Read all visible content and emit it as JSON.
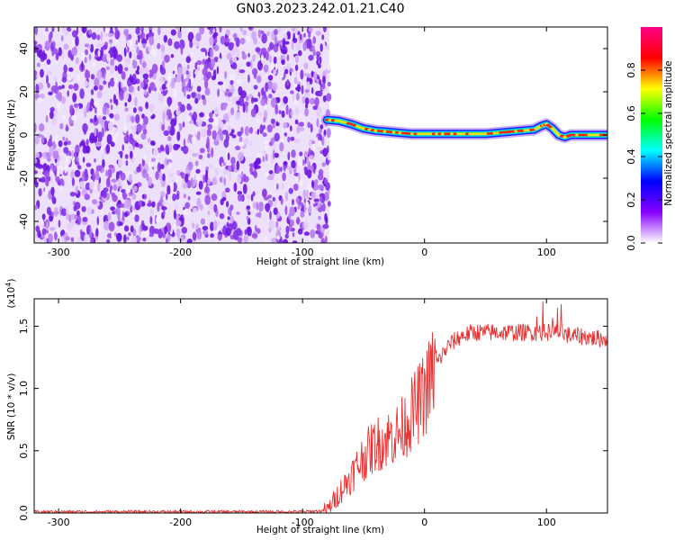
{
  "title": "GN03.2023.242.01.21.C40",
  "chart_data": [
    {
      "type": "heatmap",
      "xlabel": "Height of straight line (km)",
      "ylabel": "Frequency (Hz)",
      "xlim": [
        -320,
        150
      ],
      "ylim": [
        -50,
        50
      ],
      "xticks": [
        -300,
        -200,
        -100,
        0,
        100
      ],
      "yticks": [
        -40,
        -20,
        0,
        20,
        40
      ],
      "noise_region_x": [
        -320,
        -78
      ],
      "ridge": {
        "x": [
          -80,
          -70,
          -60,
          -50,
          -40,
          -30,
          -20,
          -10,
          0,
          10,
          20,
          30,
          40,
          50,
          60,
          70,
          80,
          90,
          95,
          100,
          105,
          110,
          115,
          120,
          130,
          140,
          150
        ],
        "freq": [
          7,
          6.5,
          5,
          3,
          2,
          1.5,
          1,
          0.5,
          0.5,
          0.5,
          0.5,
          0.5,
          0.5,
          0.5,
          1,
          1.5,
          2,
          2.5,
          4,
          5,
          3,
          0,
          -1,
          0,
          0,
          0,
          0
        ]
      },
      "colorbar": {
        "label": "Normalized spectral amplitude",
        "ticks": [
          0.0,
          0.2,
          0.4,
          0.6,
          0.8
        ],
        "range": [
          0,
          1
        ],
        "colors": [
          "#ffffff",
          "#8800ff",
          "#0000ff",
          "#00ffff",
          "#00ff00",
          "#ffff00",
          "#ff0000",
          "#ff0088"
        ]
      }
    },
    {
      "type": "line",
      "xlabel": "Height of straight line (km)",
      "ylabel": "SNR (10 * v/v)",
      "multiplier_label": "(x10",
      "multiplier_exp": "4",
      "xlim": [
        -320,
        150
      ],
      "ylim": [
        0,
        1.72
      ],
      "xticks": [
        -300,
        -200,
        -100,
        0,
        100
      ],
      "yticks": [
        "0.0",
        "0.5",
        "1.0",
        "1.5"
      ],
      "color": "#e83030",
      "series": [
        {
          "x": [
            -320,
            -300,
            -250,
            -200,
            -150,
            -100,
            -80,
            -60,
            -50,
            -40,
            -30,
            -20,
            -10,
            0,
            10,
            20,
            30,
            40,
            50,
            60,
            70,
            80,
            90,
            100,
            110,
            120,
            130,
            140,
            150
          ],
          "values": [
            0.01,
            0.01,
            0.01,
            0.01,
            0.01,
            0.01,
            0.02,
            0.3,
            0.45,
            0.55,
            0.6,
            0.65,
            0.8,
            0.95,
            1.2,
            1.35,
            1.42,
            1.45,
            1.45,
            1.45,
            1.45,
            1.45,
            1.45,
            1.45,
            1.45,
            1.42,
            1.42,
            1.4,
            1.4
          ]
        }
      ]
    }
  ]
}
